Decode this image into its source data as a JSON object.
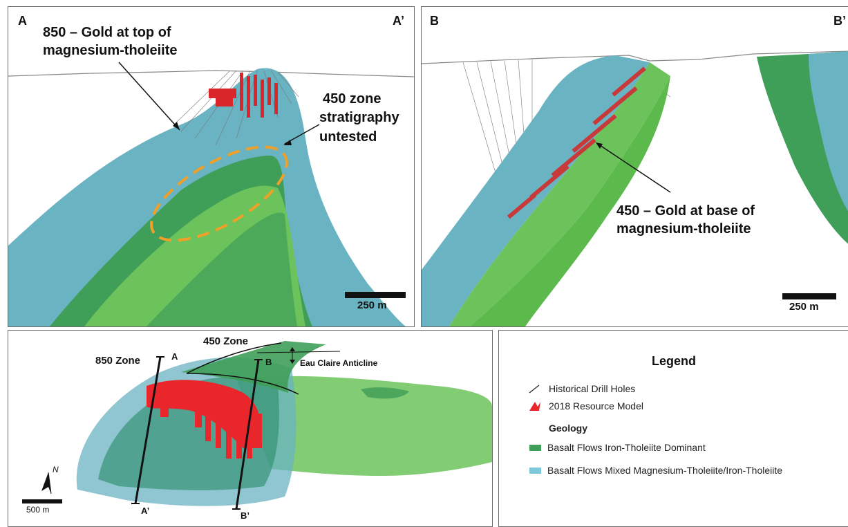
{
  "panels": {
    "section_a": {
      "corner_left": "A",
      "corner_right": "A’",
      "callout_850": [
        "850 – Gold at top of",
        "magnesium-tholeiite"
      ],
      "callout_450": [
        "450 zone",
        "stratigraphy",
        "untested"
      ],
      "scale_label": "250 m"
    },
    "section_b": {
      "corner_left": "B",
      "corner_right": "B’",
      "callout_450": [
        "450 – Gold at base of",
        "magnesium-tholeiite"
      ],
      "scale_label": "250 m"
    },
    "plan_map": {
      "zone_850": "850 Zone",
      "zone_450": "450 Zone",
      "anticline": "Eau Claire Anticline",
      "section_a_start": "A",
      "section_a_end": "A’",
      "section_b_start": "B",
      "section_b_end": "B’",
      "north": "N",
      "scale_label": "500 m"
    }
  },
  "legend": {
    "title": "Legend",
    "items": [
      {
        "label": "Historical Drill Holes",
        "icon": "drill-hole-line-icon"
      },
      {
        "label": "2018 Resource Model",
        "icon": "resource-model-icon",
        "color": "#e8262b"
      }
    ],
    "geology_heading": "Geology",
    "geology": [
      {
        "label": "Basalt Flows Iron-Tholeiite Dominant",
        "color": "#3f9e58"
      },
      {
        "label": "Basalt Flows Mixed Magnesium-Tholeiite/Iron-Tholeiite",
        "color": "#7fc7da"
      }
    ]
  },
  "colors": {
    "resource_red": "#e8262b",
    "iron_tholeiite_green": "#3f9e58",
    "light_green": "#6cc35b",
    "mixed_teal": "#5fa9b9",
    "callout_orange": "#f0a028"
  }
}
